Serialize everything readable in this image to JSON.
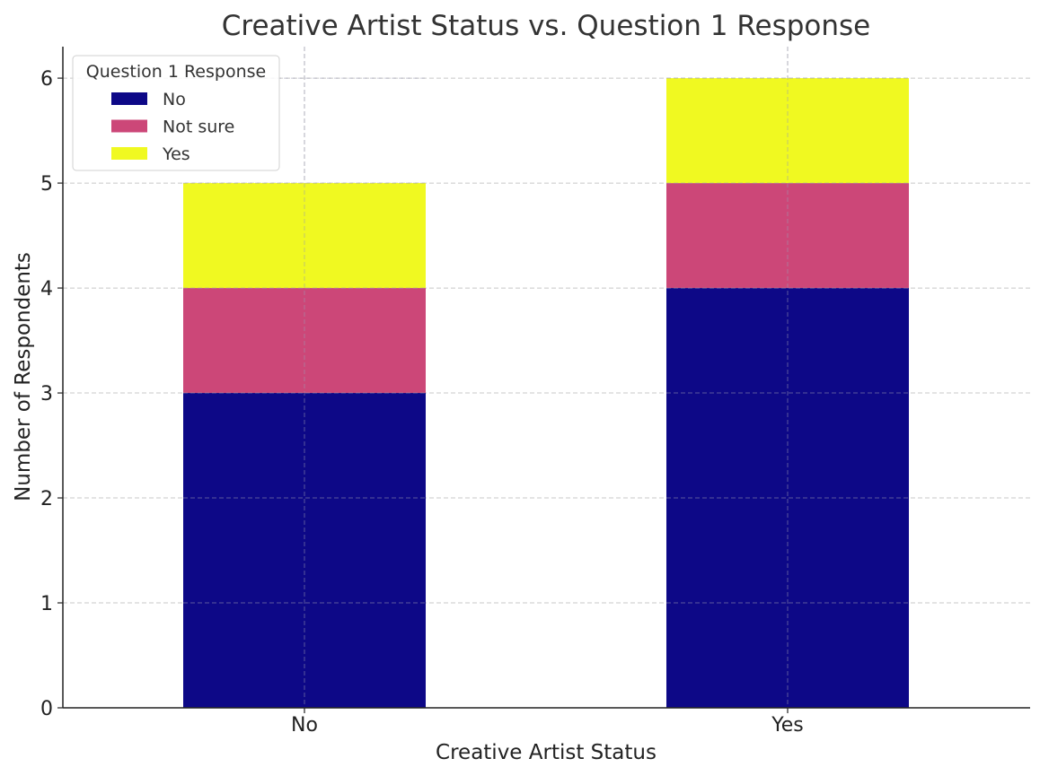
{
  "chart_data": {
    "type": "bar",
    "stacked": true,
    "title": "Creative Artist Status vs. Question 1 Response",
    "xlabel": "Creative Artist Status",
    "ylabel": "Number of Respondents",
    "categories": [
      "No",
      "Yes"
    ],
    "series": [
      {
        "name": "No",
        "values": [
          3,
          4
        ],
        "color": "#0d0887"
      },
      {
        "name": "Not sure",
        "values": [
          1,
          1
        ],
        "color": "#cc4778"
      },
      {
        "name": "Yes",
        "values": [
          1,
          1
        ],
        "color": "#f0f921"
      }
    ],
    "ylim": [
      0,
      6.3
    ],
    "yticks": [
      0,
      1,
      2,
      3,
      4,
      5,
      6
    ],
    "grid": true,
    "legend": {
      "title": "Question 1 Response",
      "placement": "top-left"
    }
  }
}
